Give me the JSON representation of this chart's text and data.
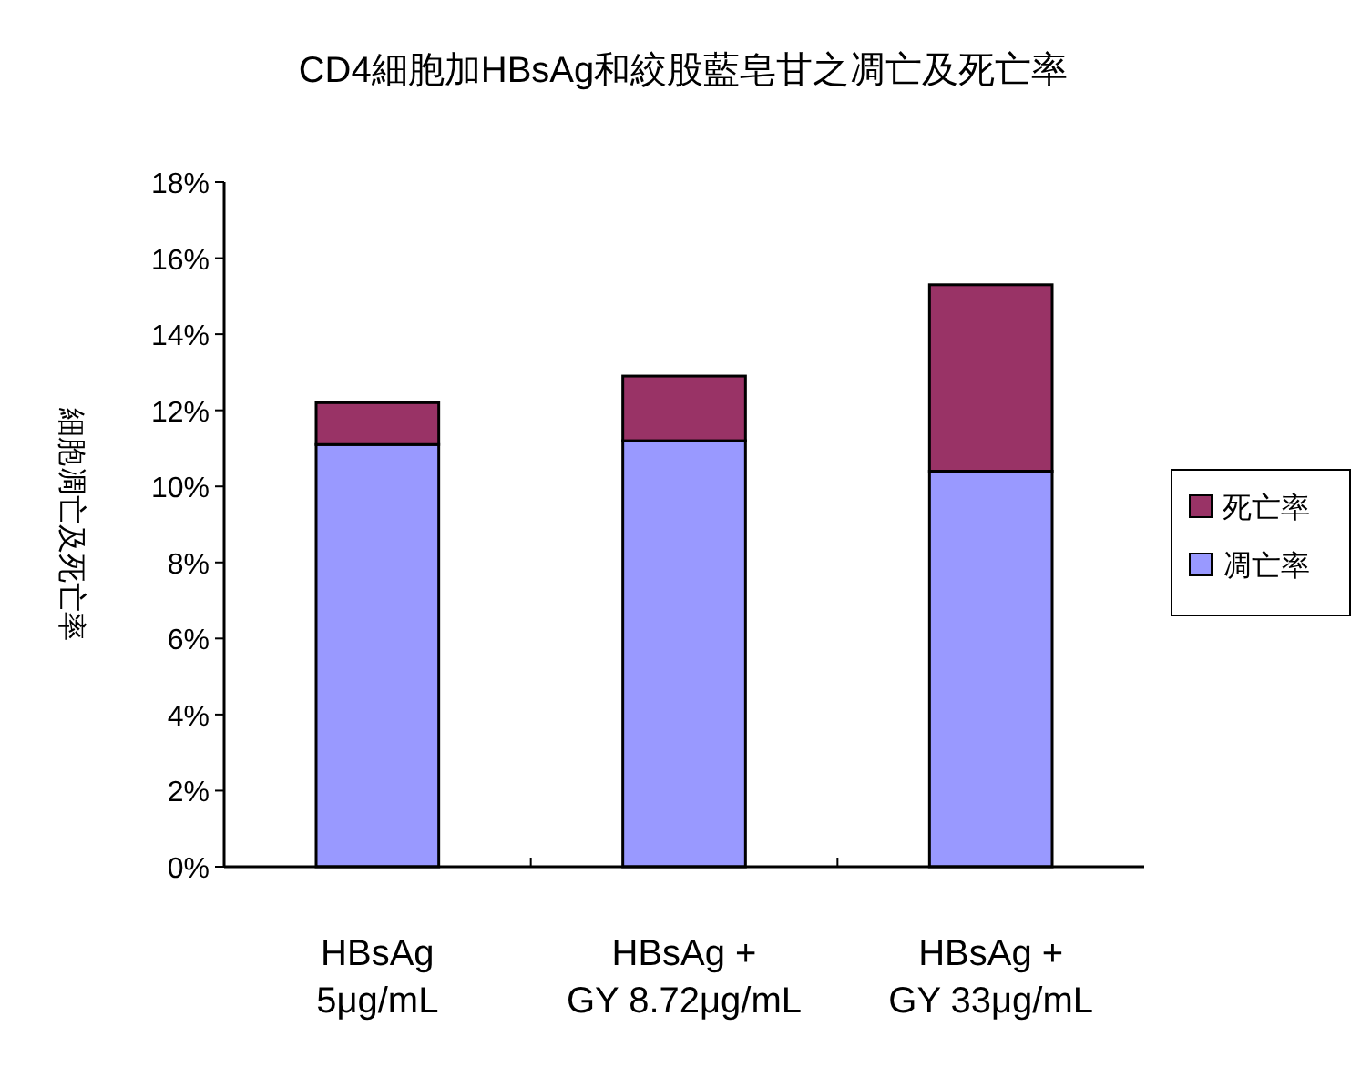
{
  "chart_data": {
    "type": "bar",
    "stacked": true,
    "title": "CD4細胞加HBsAg和絞股藍皂甘之凋亡及死亡率",
    "ylabel": "細胞凋亡及死亡率",
    "categories": [
      "HBsAg\n5μg/mL",
      "HBsAg +\nGY 8.72μg/mL",
      "HBsAg +\nGY 33μg/mL"
    ],
    "series": [
      {
        "name": "凋亡率",
        "color": "#9999ff",
        "values": [
          11.1,
          11.2,
          10.4
        ]
      },
      {
        "name": "死亡率",
        "color": "#993366",
        "values": [
          1.1,
          1.7,
          4.9
        ]
      }
    ],
    "ylim": [
      0,
      18
    ],
    "yticks": [
      {
        "value": 0,
        "label": "0%"
      },
      {
        "value": 2,
        "label": "2%"
      },
      {
        "value": 4,
        "label": "4%"
      },
      {
        "value": 6,
        "label": "6%"
      },
      {
        "value": 8,
        "label": "8%"
      },
      {
        "value": 10,
        "label": "10%"
      },
      {
        "value": 12,
        "label": "12%"
      },
      {
        "value": 14,
        "label": "14%"
      },
      {
        "value": 16,
        "label": "16%"
      },
      {
        "value": 18,
        "label": "18%"
      }
    ],
    "legend": "right"
  }
}
